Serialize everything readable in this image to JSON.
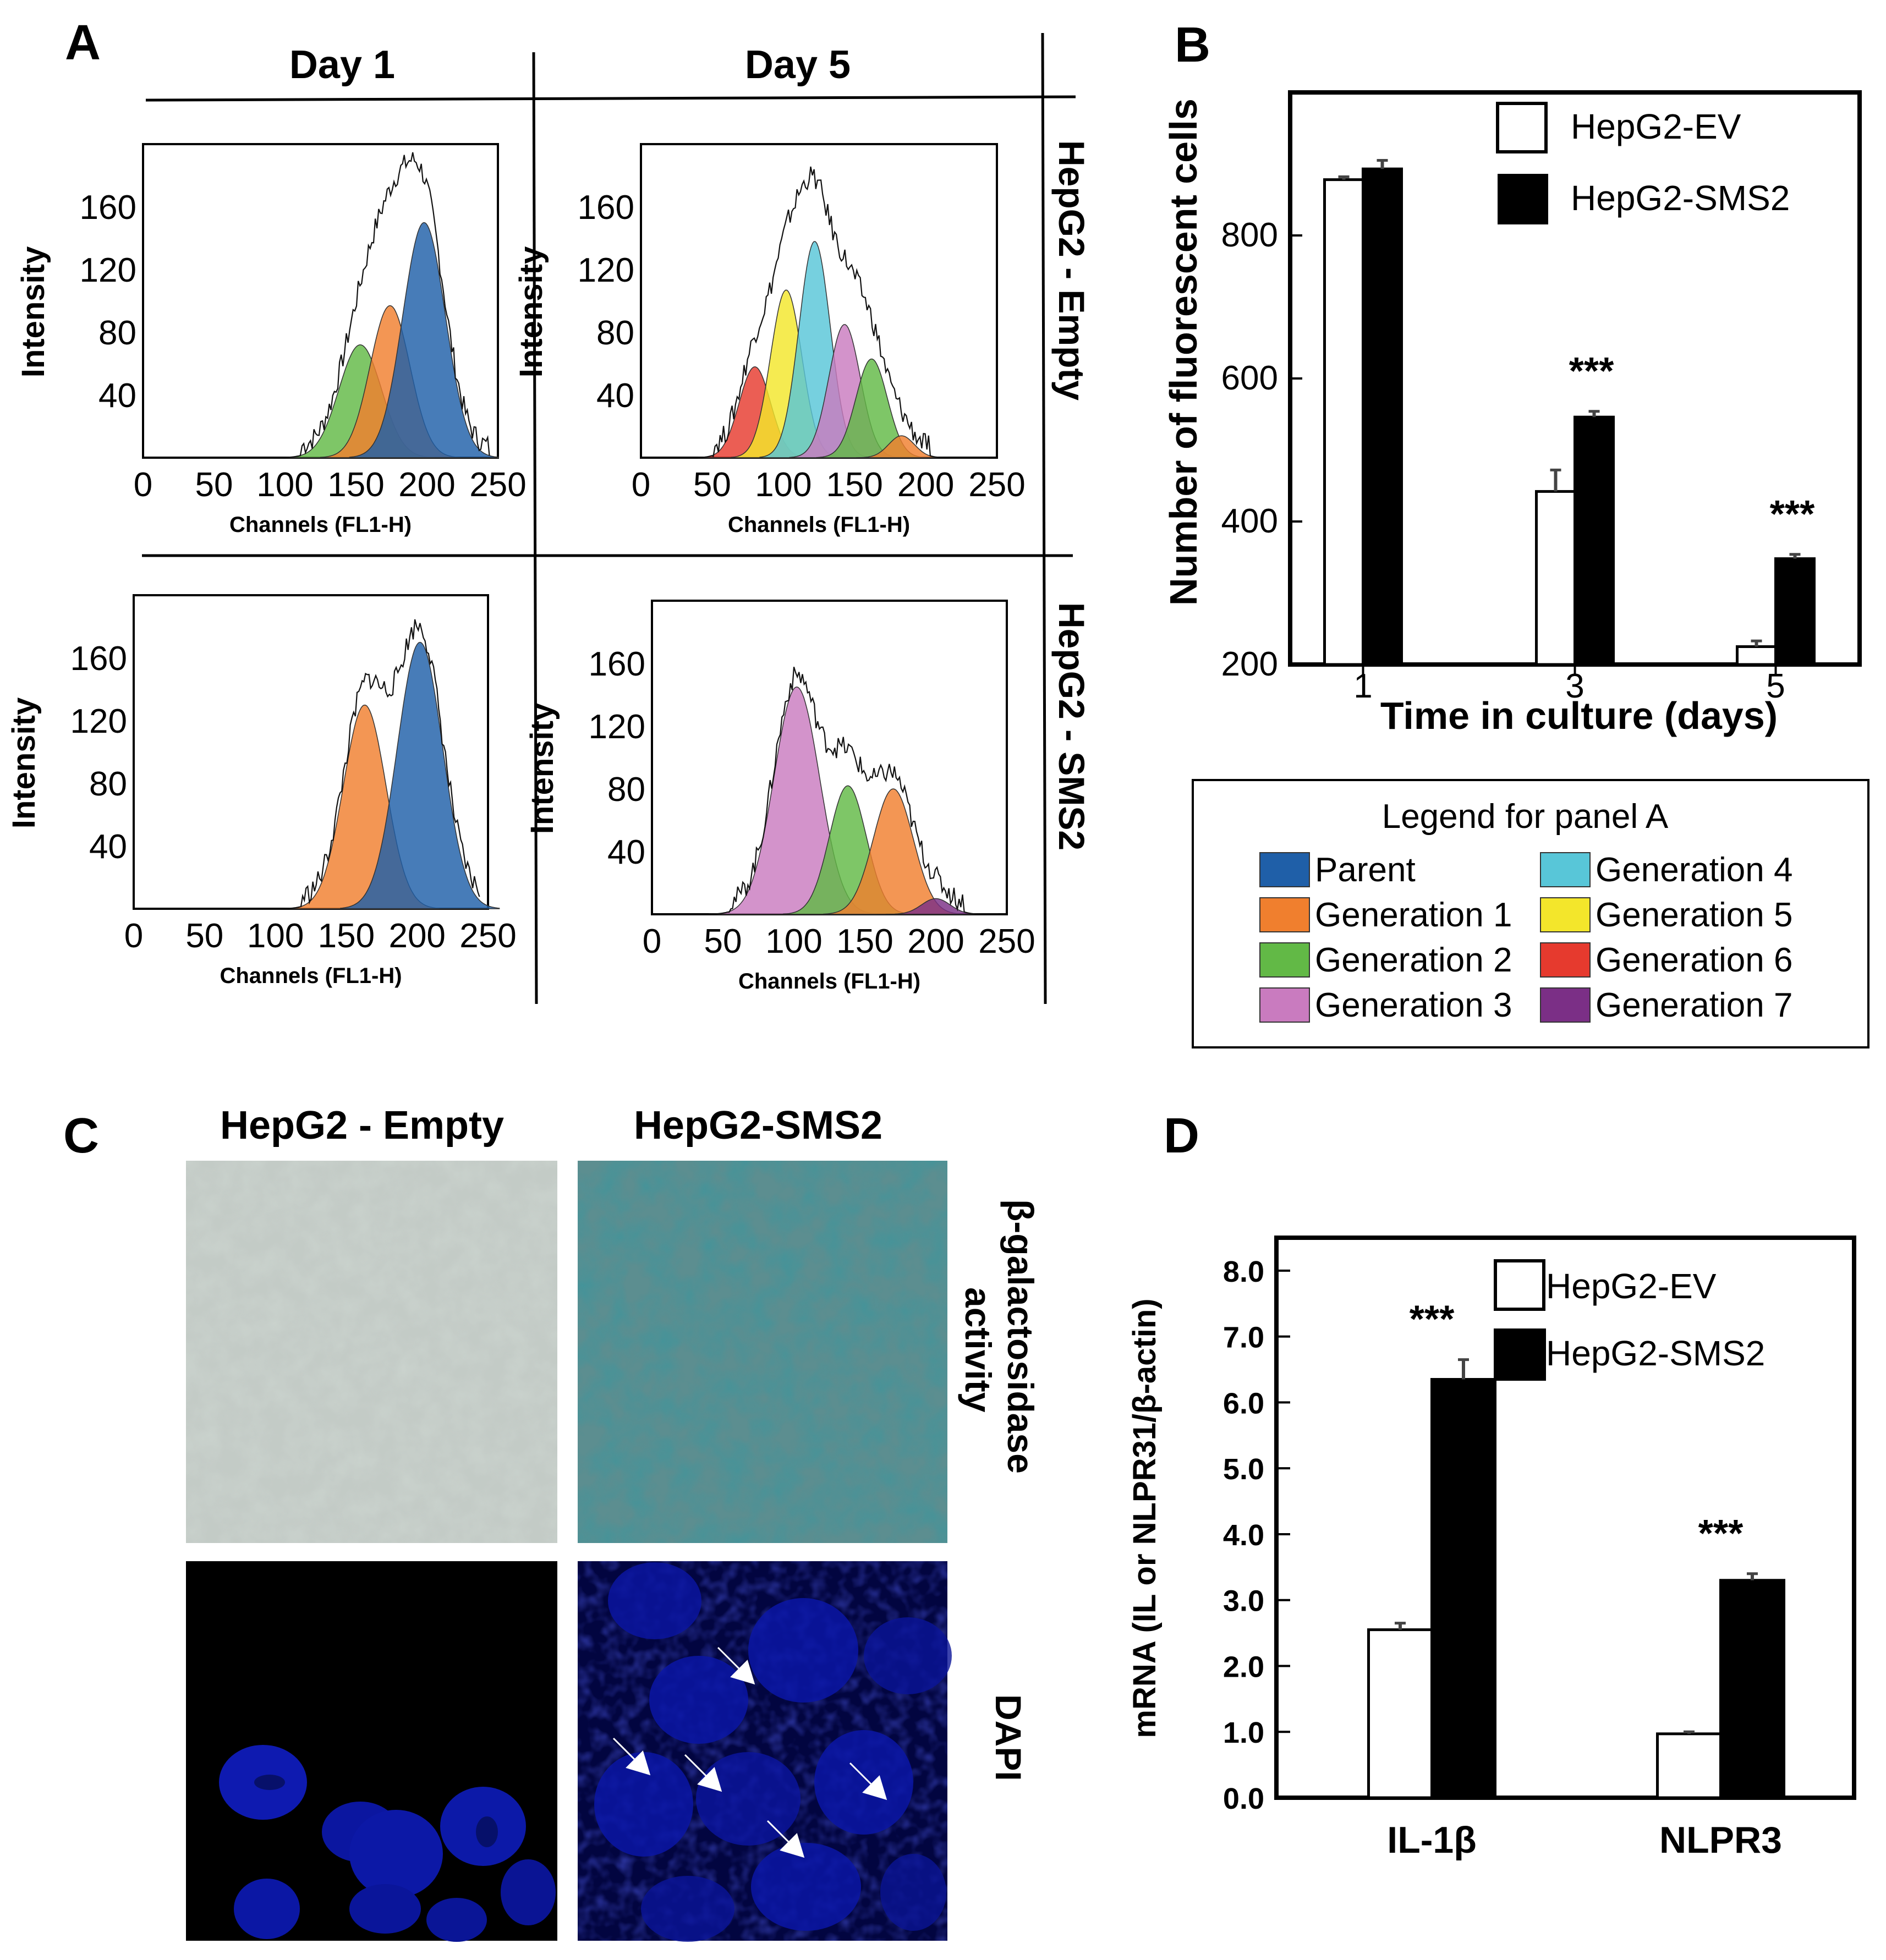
{
  "panel_labels": {
    "a": "A",
    "b": "B",
    "c": "C",
    "d": "D"
  },
  "panel_a": {
    "col_headers": [
      "Day 1",
      "Day 5"
    ],
    "row_labels": [
      "HepG2 - Empty",
      "HepG2 - SMS2"
    ],
    "colors": {
      "Parent": "#1f5fa8",
      "Generation 1": "#f07f2e",
      "Generation 2": "#62b946",
      "Generation 3": "#c97bbf",
      "Generation 4": "#58c6d8",
      "Generation 5": "#f3e62b",
      "Generation 6": "#e63a2e",
      "Generation 7": "#7b2f86"
    }
  },
  "panel_c": {
    "col_headers": [
      "HepG2 - Empty",
      "HepG2-SMS2"
    ],
    "row_labels": [
      "β-galactosidase",
      "activity",
      "DAPI"
    ]
  },
  "chart_data": [
    {
      "type": "area",
      "id": "A-day1-empty",
      "title": "Day 1 / HepG2 - Empty",
      "xlabel": "Channels (FL1-H)",
      "ylabel": "Intensity",
      "xlim": [
        0,
        250
      ],
      "ylim": [
        0,
        200
      ],
      "xticks": [
        0,
        50,
        100,
        150,
        200,
        250
      ],
      "yticks": [
        40,
        80,
        120,
        160
      ],
      "peaks": [
        {
          "name": "Generation 2",
          "center": 153,
          "height": 72,
          "sd": 15
        },
        {
          "name": "Generation 1",
          "center": 174,
          "height": 97,
          "sd": 14
        },
        {
          "name": "Parent",
          "center": 198,
          "height": 150,
          "sd": 15
        }
      ]
    },
    {
      "type": "area",
      "id": "A-day5-empty",
      "title": "Day 5 / HepG2 - Empty",
      "xlabel": "Channels (FL1-H)",
      "ylabel": "Intensity",
      "xlim": [
        0,
        250
      ],
      "ylim": [
        0,
        200
      ],
      "xticks": [
        0,
        50,
        100,
        150,
        200,
        250
      ],
      "yticks": [
        40,
        80,
        120,
        160
      ],
      "peaks": [
        {
          "name": "Generation 6",
          "center": 80,
          "height": 58,
          "sd": 11
        },
        {
          "name": "Generation 5",
          "center": 102,
          "height": 107,
          "sd": 11
        },
        {
          "name": "Generation 4",
          "center": 122,
          "height": 138,
          "sd": 11
        },
        {
          "name": "Generation 3",
          "center": 143,
          "height": 85,
          "sd": 11
        },
        {
          "name": "Generation 2",
          "center": 162,
          "height": 63,
          "sd": 11
        },
        {
          "name": "Generation 1",
          "center": 183,
          "height": 14,
          "sd": 9
        }
      ]
    },
    {
      "type": "area",
      "id": "A-day1-sms2",
      "title": "Day 1 / HepG2 - SMS2",
      "xlabel": "Channels (FL1-H)",
      "ylabel": "Intensity",
      "xlim": [
        0,
        250
      ],
      "ylim": [
        0,
        200
      ],
      "xticks": [
        0,
        50,
        100,
        150,
        200,
        250
      ],
      "yticks": [
        40,
        80,
        120,
        160
      ],
      "peaks": [
        {
          "name": "Generation 1",
          "center": 163,
          "height": 130,
          "sd": 15
        },
        {
          "name": "Parent",
          "center": 202,
          "height": 170,
          "sd": 16
        }
      ]
    },
    {
      "type": "area",
      "id": "A-day5-sms2",
      "title": "Day 5 / HepG2 - SMS2",
      "xlabel": "Channels (FL1-H)",
      "ylabel": "Intensity",
      "xlim": [
        0,
        250
      ],
      "ylim": [
        0,
        200
      ],
      "xticks": [
        0,
        50,
        100,
        150,
        200,
        250
      ],
      "yticks": [
        40,
        80,
        120,
        160
      ],
      "peaks": [
        {
          "name": "Generation 3",
          "center": 102,
          "height": 145,
          "sd": 16
        },
        {
          "name": "Generation 2",
          "center": 138,
          "height": 82,
          "sd": 13
        },
        {
          "name": "Generation 1",
          "center": 170,
          "height": 80,
          "sd": 14
        },
        {
          "name": "Generation 7",
          "center": 200,
          "height": 10,
          "sd": 10
        }
      ]
    },
    {
      "type": "bar",
      "id": "B",
      "title": "",
      "xlabel": "Time in culture (days)",
      "ylabel": "Number of fluorescent cells",
      "categories": [
        "1",
        "3",
        "5"
      ],
      "ylim": [
        200,
        1000
      ],
      "yticks": [
        200,
        400,
        600,
        800
      ],
      "series": [
        {
          "name": "HepG2-EV",
          "color": "#ffffff",
          "values": [
            878,
            442,
            225
          ],
          "errors": [
            4,
            30,
            8
          ]
        },
        {
          "name": "HepG2-SMS2",
          "color": "#000000",
          "values": [
            893,
            546,
            348
          ],
          "errors": [
            12,
            8,
            6
          ]
        }
      ],
      "annotations": [
        "",
        "***",
        "***"
      ]
    },
    {
      "type": "bar",
      "id": "D",
      "title": "",
      "xlabel": "",
      "ylabel": "mRNA (IL or NLPR31/β-actin)",
      "categories": [
        "IL-1β",
        "NLPR3"
      ],
      "ylim": [
        0,
        8.5
      ],
      "yticks": [
        "0.0",
        "1.0",
        "2.0",
        "3.0",
        "4.0",
        "5.0",
        "6.0",
        "7.0",
        "8.0"
      ],
      "series": [
        {
          "name": "HepG2-EV",
          "color": "#ffffff",
          "values": [
            2.55,
            0.97
          ],
          "errors": [
            0.1,
            0.03
          ]
        },
        {
          "name": "HepG2-SMS2",
          "color": "#000000",
          "values": [
            6.35,
            3.3
          ],
          "errors": [
            0.3,
            0.1
          ]
        }
      ],
      "annotations": [
        "***",
        "***"
      ]
    }
  ],
  "legend_a": {
    "title": "Legend for panel A",
    "items": [
      "Parent",
      "Generation 1",
      "Generation 2",
      "Generation 3",
      "Generation 4",
      "Generation 5",
      "Generation 6",
      "Generation 7"
    ]
  }
}
